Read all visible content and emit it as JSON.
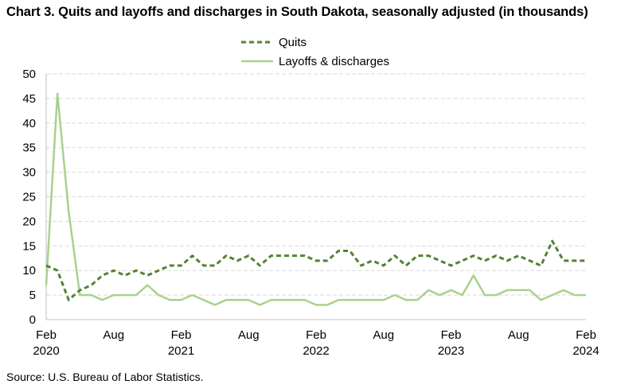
{
  "chart_data": {
    "type": "line",
    "title": "Chart 3. Quits and layoffs and discharges in South Dakota, seasonally adjusted (in thousands)",
    "source": "Source: U.S. Bureau of Labor Statistics.",
    "xlabel": "",
    "ylabel": "",
    "ylim": [
      0,
      50
    ],
    "yticks": [
      "0",
      "5",
      "10",
      "15",
      "20",
      "25",
      "30",
      "35",
      "40",
      "45",
      "50"
    ],
    "xticks": [
      {
        "month": "Feb",
        "year": "2020",
        "index": 0
      },
      {
        "month": "Aug",
        "year": "",
        "index": 6
      },
      {
        "month": "Feb",
        "year": "2021",
        "index": 12
      },
      {
        "month": "Aug",
        "year": "",
        "index": 18
      },
      {
        "month": "Feb",
        "year": "2022",
        "index": 24
      },
      {
        "month": "Aug",
        "year": "",
        "index": 30
      },
      {
        "month": "Feb",
        "year": "2023",
        "index": 36
      },
      {
        "month": "Aug",
        "year": "",
        "index": 42
      },
      {
        "month": "Feb",
        "year": "2024",
        "index": 48
      }
    ],
    "x_start": "Feb 2020",
    "x_end": "Feb 2024",
    "grid": "horizontal dashed",
    "legend_position": "top-center",
    "series": [
      {
        "name": "Quits",
        "style": "dashed",
        "color": "#548235",
        "values": [
          11,
          10,
          4,
          6,
          7,
          9,
          10,
          9,
          10,
          9,
          10,
          11,
          11,
          13,
          11,
          11,
          13,
          12,
          13,
          11,
          13,
          13,
          13,
          13,
          12,
          12,
          14,
          14,
          11,
          12,
          11,
          13,
          11,
          13,
          13,
          12,
          11,
          12,
          13,
          12,
          13,
          12,
          13,
          12,
          11,
          16,
          12,
          12,
          12
        ]
      },
      {
        "name": "Layoffs & discharges",
        "style": "solid",
        "color": "#a9d18e",
        "values": [
          7,
          46,
          22,
          5,
          5,
          4,
          5,
          5,
          5,
          7,
          5,
          4,
          4,
          5,
          4,
          3,
          4,
          4,
          4,
          3,
          4,
          4,
          4,
          4,
          3,
          3,
          4,
          4,
          4,
          4,
          4,
          5,
          4,
          4,
          6,
          5,
          6,
          5,
          9,
          5,
          5,
          6,
          6,
          6,
          4,
          5,
          6,
          5,
          5
        ]
      }
    ]
  }
}
